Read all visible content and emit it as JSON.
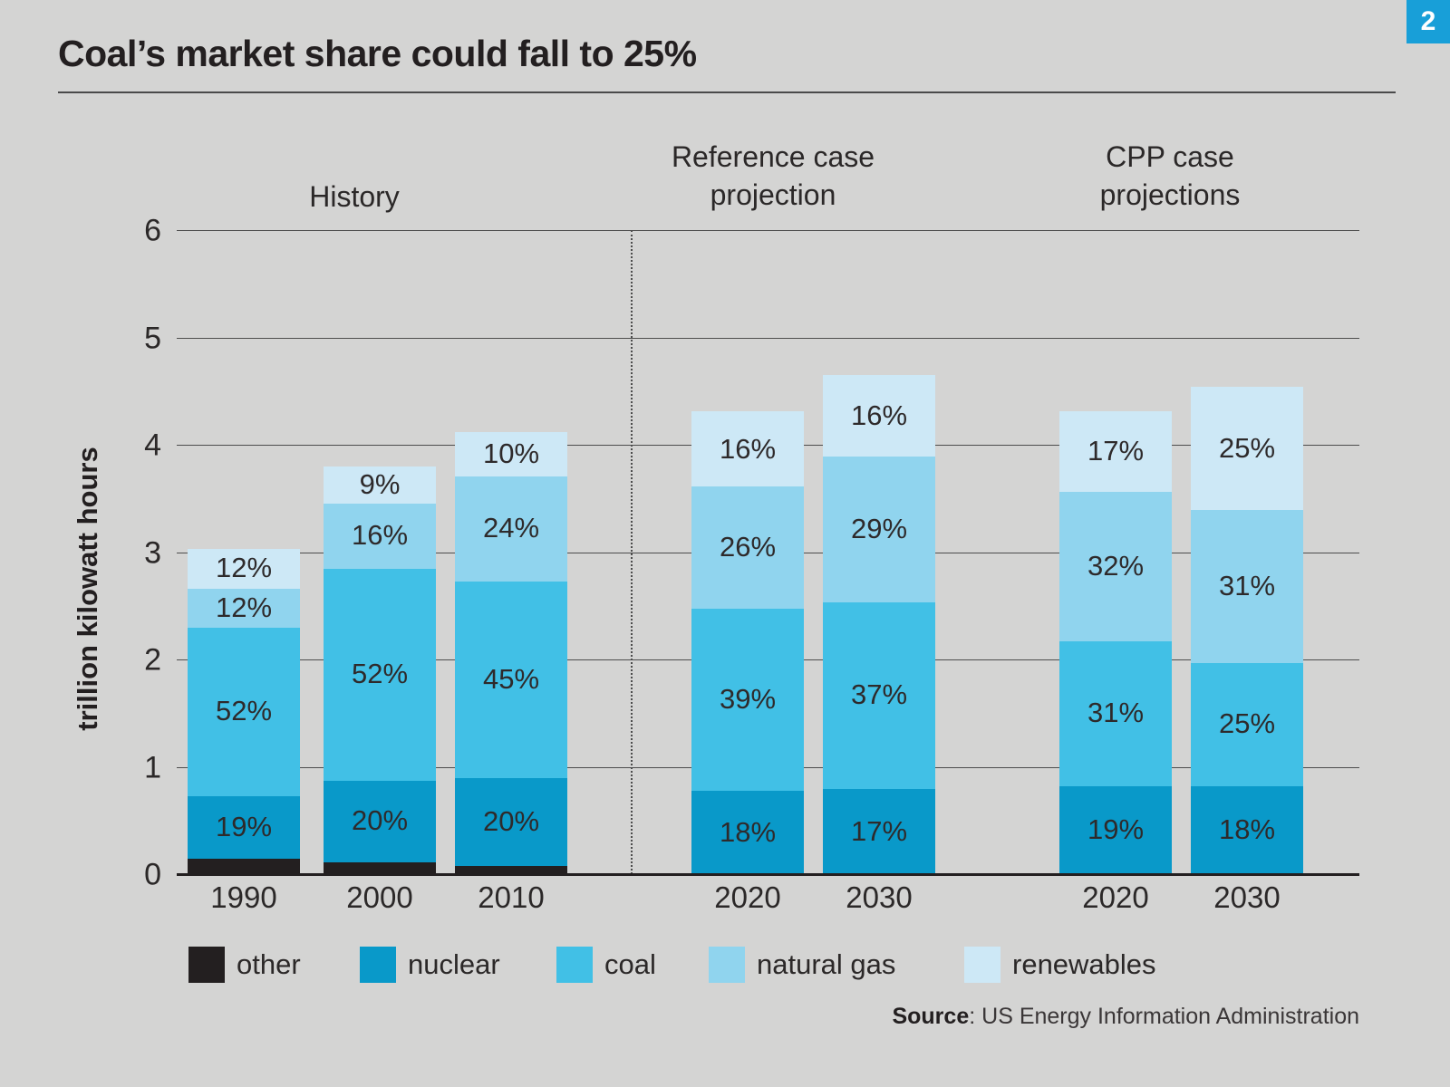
{
  "page": {
    "badge": "2",
    "background": "#d4d4d3"
  },
  "title": "Coal’s market share could fall to 25%",
  "source": {
    "label": "Source",
    "separator": ": ",
    "text": "US Energy Information Administration"
  },
  "legend": [
    {
      "label": "other",
      "color": "#231f20"
    },
    {
      "label": "nuclear",
      "color": "#0999c9"
    },
    {
      "label": "coal",
      "color": "#41c0e6"
    },
    {
      "label": "natural gas",
      "color": "#90d4ee"
    },
    {
      "label": "renewables",
      "color": "#cde8f6"
    }
  ],
  "chart_data": {
    "type": "bar",
    "subtype": "stacked",
    "title": "Coal’s market share could fall to 25%",
    "xlabel": "",
    "ylabel": "trillion kilowatt hours",
    "ylim": [
      0,
      6
    ],
    "yticks": [
      "0",
      "1",
      "2",
      "3",
      "4",
      "5",
      "6"
    ],
    "grid": true,
    "legend_position": "bottom",
    "series_order_bottom_up": [
      "other",
      "nuclear",
      "coal",
      "natural gas",
      "renewables"
    ],
    "colors": {
      "other": "#231f20",
      "nuclear": "#0999c9",
      "coal": "#41c0e6",
      "natural gas": "#90d4ee",
      "renewables": "#cde8f6"
    },
    "groups": [
      {
        "label": "History",
        "bars": [
          {
            "year": "1990",
            "total": 3.03,
            "segments": [
              {
                "series": "other",
                "pct": 5,
                "label": ""
              },
              {
                "series": "nuclear",
                "pct": 19,
                "label": "19%"
              },
              {
                "series": "coal",
                "pct": 52,
                "label": "52%"
              },
              {
                "series": "natural gas",
                "pct": 12,
                "label": "12%"
              },
              {
                "series": "renewables",
                "pct": 12,
                "label": "12%"
              }
            ]
          },
          {
            "year": "2000",
            "total": 3.8,
            "segments": [
              {
                "series": "other",
                "pct": 3,
                "label": ""
              },
              {
                "series": "nuclear",
                "pct": 20,
                "label": "20%"
              },
              {
                "series": "coal",
                "pct": 52,
                "label": "52%"
              },
              {
                "series": "natural gas",
                "pct": 16,
                "label": "16%"
              },
              {
                "series": "renewables",
                "pct": 9,
                "label": "9%"
              }
            ]
          },
          {
            "year": "2010",
            "total": 4.12,
            "segments": [
              {
                "series": "other",
                "pct": 2,
                "label": ""
              },
              {
                "series": "nuclear",
                "pct": 20,
                "label": "20%"
              },
              {
                "series": "coal",
                "pct": 45,
                "label": "45%"
              },
              {
                "series": "natural gas",
                "pct": 24,
                "label": "24%"
              },
              {
                "series": "renewables",
                "pct": 10,
                "label": "10%"
              }
            ]
          }
        ]
      },
      {
        "label": "Reference case\nprojection",
        "bars": [
          {
            "year": "2020",
            "total": 4.31,
            "segments": [
              {
                "series": "nuclear",
                "pct": 18,
                "label": "18%"
              },
              {
                "series": "coal",
                "pct": 39,
                "label": "39%"
              },
              {
                "series": "natural gas",
                "pct": 26,
                "label": "26%"
              },
              {
                "series": "renewables",
                "pct": 16,
                "label": "16%"
              }
            ]
          },
          {
            "year": "2030",
            "total": 4.65,
            "segments": [
              {
                "series": "nuclear",
                "pct": 17,
                "label": "17%"
              },
              {
                "series": "coal",
                "pct": 37,
                "label": "37%"
              },
              {
                "series": "natural gas",
                "pct": 29,
                "label": "29%"
              },
              {
                "series": "renewables",
                "pct": 16,
                "label": "16%"
              }
            ]
          }
        ]
      },
      {
        "label": "CPP case\nprojections",
        "bars": [
          {
            "year": "2020",
            "total": 4.31,
            "segments": [
              {
                "series": "nuclear",
                "pct": 19,
                "label": "19%"
              },
              {
                "series": "coal",
                "pct": 31,
                "label": "31%"
              },
              {
                "series": "natural gas",
                "pct": 32,
                "label": "32%"
              },
              {
                "series": "renewables",
                "pct": 17,
                "label": "17%"
              }
            ]
          },
          {
            "year": "2030",
            "total": 4.54,
            "segments": [
              {
                "series": "nuclear",
                "pct": 18,
                "label": "18%"
              },
              {
                "series": "coal",
                "pct": 25,
                "label": "25%"
              },
              {
                "series": "natural gas",
                "pct": 31,
                "label": "31%"
              },
              {
                "series": "renewables",
                "pct": 25,
                "label": "25%"
              }
            ]
          }
        ]
      }
    ]
  }
}
